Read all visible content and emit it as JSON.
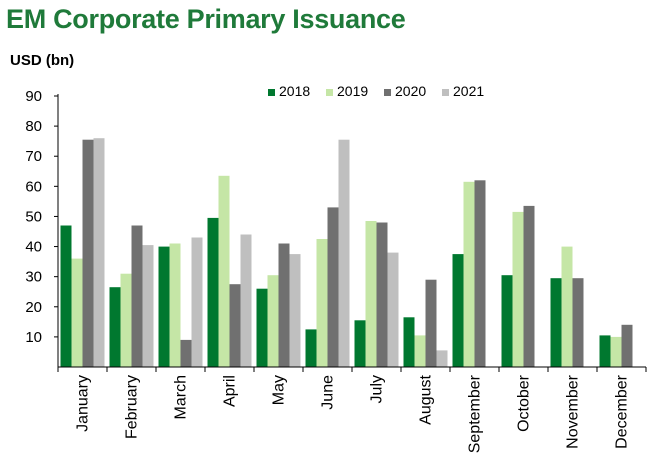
{
  "title": "EM Corporate Primary Issuance",
  "unit_label": "USD (bn)",
  "chart_data": {
    "type": "bar",
    "title": "EM Corporate Primary Issuance",
    "ylabel": "USD (bn)",
    "xlabel": "",
    "ylim": [
      0,
      90
    ],
    "yticks": [
      10,
      20,
      30,
      40,
      50,
      60,
      70,
      80,
      90
    ],
    "grid": false,
    "legend": "top-right",
    "categories": [
      "January",
      "February",
      "March",
      "April",
      "May",
      "June",
      "July",
      "August",
      "September",
      "October",
      "November",
      "December"
    ],
    "series": [
      {
        "name": "2018",
        "color": "#00782f",
        "values": [
          47,
          26.5,
          40,
          49.5,
          26,
          12.5,
          15.5,
          16.5,
          37.5,
          30.5,
          29.5,
          10.5
        ]
      },
      {
        "name": "2019",
        "color": "#c5e6a6",
        "values": [
          36,
          31,
          41,
          63.5,
          30.5,
          42.5,
          48.5,
          10.5,
          61.5,
          51.5,
          40,
          10
        ]
      },
      {
        "name": "2020",
        "color": "#707070",
        "values": [
          75.5,
          47,
          9,
          27.5,
          41,
          53,
          48,
          29,
          62,
          53.5,
          29.5,
          14
        ]
      },
      {
        "name": "2021",
        "color": "#bfbfbf",
        "values": [
          76,
          40.5,
          43,
          44,
          37.5,
          75.5,
          38,
          5.5,
          null,
          null,
          null,
          null
        ]
      }
    ]
  }
}
